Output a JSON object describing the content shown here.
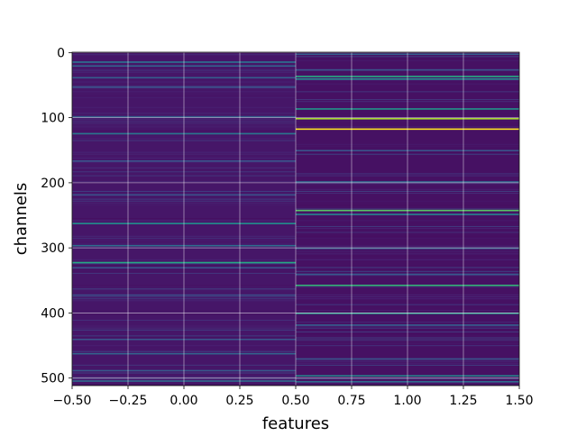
{
  "chart_data": {
    "type": "heatmap",
    "title": "",
    "xlabel": "features",
    "ylabel": "channels",
    "xlim": [
      -0.5,
      1.5
    ],
    "ylim": [
      511.5,
      -0.5
    ],
    "x_ticks": [
      "−0.50",
      "−0.25",
      "0.00",
      "0.25",
      "0.50",
      "0.75",
      "1.00",
      "1.25",
      "1.50"
    ],
    "x_tick_values": [
      -0.5,
      -0.25,
      0.0,
      0.25,
      0.5,
      0.75,
      1.0,
      1.25,
      1.5
    ],
    "y_ticks": [
      "0",
      "100",
      "200",
      "300",
      "400",
      "500"
    ],
    "y_tick_values": [
      0,
      100,
      200,
      300,
      400,
      500
    ],
    "grid": true,
    "grid_color": "#ffffff",
    "colormap": "viridis",
    "colormap_range": [
      0.0,
      1.0
    ],
    "columns": [
      0,
      1
    ],
    "rows": 512,
    "base_level": [
      0.08,
      0.06
    ],
    "highlight_rows": [
      {
        "feature": 0,
        "channel": 14,
        "value": 0.38
      },
      {
        "feature": 0,
        "channel": 20,
        "value": 0.32
      },
      {
        "feature": 0,
        "channel": 38,
        "value": 0.3
      },
      {
        "feature": 0,
        "channel": 52,
        "value": 0.24
      },
      {
        "feature": 0,
        "channel": 98,
        "value": 0.3
      },
      {
        "feature": 0,
        "channel": 124,
        "value": 0.4
      },
      {
        "feature": 0,
        "channel": 166,
        "value": 0.26
      },
      {
        "feature": 0,
        "channel": 218,
        "value": 0.26
      },
      {
        "feature": 0,
        "channel": 262,
        "value": 0.5
      },
      {
        "feature": 0,
        "channel": 296,
        "value": 0.36
      },
      {
        "feature": 0,
        "channel": 322,
        "value": 0.6
      },
      {
        "feature": 0,
        "channel": 330,
        "value": 0.26
      },
      {
        "feature": 0,
        "channel": 372,
        "value": 0.24
      },
      {
        "feature": 0,
        "channel": 440,
        "value": 0.26
      },
      {
        "feature": 0,
        "channel": 462,
        "value": 0.32
      },
      {
        "feature": 0,
        "channel": 488,
        "value": 0.28
      },
      {
        "feature": 0,
        "channel": 504,
        "value": 0.36
      },
      {
        "feature": 1,
        "channel": 2,
        "value": 0.3
      },
      {
        "feature": 1,
        "channel": 26,
        "value": 0.26
      },
      {
        "feature": 1,
        "channel": 36,
        "value": 0.62
      },
      {
        "feature": 1,
        "channel": 40,
        "value": 0.48
      },
      {
        "feature": 1,
        "channel": 86,
        "value": 0.52
      },
      {
        "feature": 1,
        "channel": 101,
        "value": 0.88
      },
      {
        "feature": 1,
        "channel": 117,
        "value": 1.0
      },
      {
        "feature": 1,
        "channel": 150,
        "value": 0.26
      },
      {
        "feature": 1,
        "channel": 198,
        "value": 0.32
      },
      {
        "feature": 1,
        "channel": 242,
        "value": 0.74
      },
      {
        "feature": 1,
        "channel": 248,
        "value": 0.44
      },
      {
        "feature": 1,
        "channel": 300,
        "value": 0.3
      },
      {
        "feature": 1,
        "channel": 340,
        "value": 0.28
      },
      {
        "feature": 1,
        "channel": 357,
        "value": 0.66
      },
      {
        "feature": 1,
        "channel": 400,
        "value": 0.54
      },
      {
        "feature": 1,
        "channel": 418,
        "value": 0.3
      },
      {
        "feature": 1,
        "channel": 470,
        "value": 0.26
      },
      {
        "feature": 1,
        "channel": 496,
        "value": 0.46
      },
      {
        "feature": 1,
        "channel": 505,
        "value": 0.36
      }
    ]
  }
}
